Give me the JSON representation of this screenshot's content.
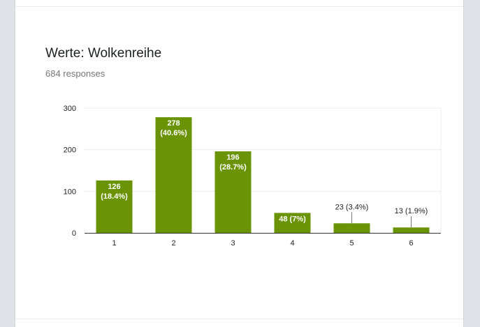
{
  "question": {
    "title": "Werte: Wolkenreihe",
    "responses_text": "684 responses"
  },
  "colors": {
    "bar": "#6a9406",
    "grid": "#ececec",
    "axis": "#333333",
    "label_inside": "#ffffff",
    "label_outside": "#222222"
  },
  "chart_data": {
    "type": "bar",
    "title": "",
    "xlabel": "",
    "ylabel": "",
    "categories": [
      "1",
      "2",
      "3",
      "4",
      "5",
      "6"
    ],
    "values": [
      126,
      278,
      196,
      48,
      23,
      13
    ],
    "data_labels": [
      "126\n(18.4%)",
      "278\n(40.6%)",
      "196\n(28.7%)",
      "48 (7%)",
      "23 (3.4%)",
      "13 (1.9%)"
    ],
    "ylim": [
      0,
      300
    ],
    "yticks": [
      0,
      100,
      200,
      300
    ],
    "grid": true,
    "legend": "none"
  }
}
